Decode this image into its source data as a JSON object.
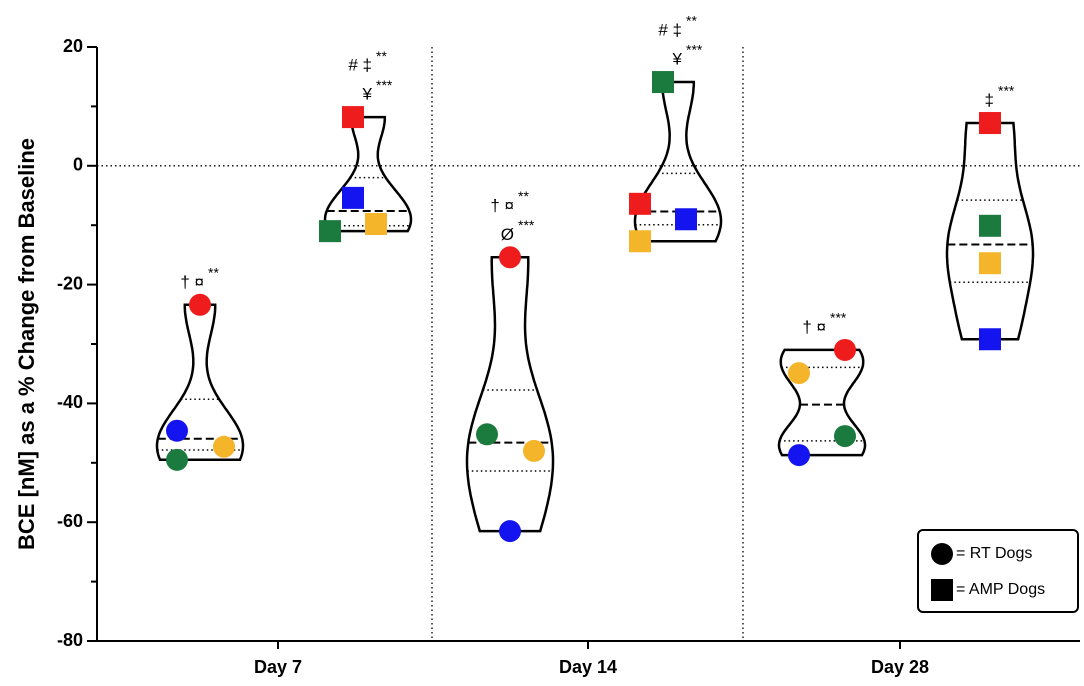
{
  "chart_data": {
    "type": "violin",
    "y_label": "BCE [nM] as a % Change from Baseline",
    "categories": [
      "Day 7",
      "Day 14",
      "Day 28"
    ],
    "ylim": [
      -80,
      20
    ],
    "yticks": [
      -80,
      -60,
      -40,
      -20,
      0,
      20
    ],
    "yticks_minor": [
      -70,
      -50,
      -30,
      -10,
      10
    ],
    "zero_line": true,
    "category_dividers": true,
    "legend_position": "lower right",
    "series": [
      {
        "name": "= RT Dogs",
        "marker": "circle",
        "values": [
          [
            -23.4,
            -44.6,
            -49.5,
            -47.3
          ],
          [
            -15.4,
            -45.2,
            -48.0,
            -61.5
          ],
          [
            -31.0,
            -34.9,
            -45.5,
            -48.7
          ]
        ],
        "colors": [
          [
            "#ee1c1c",
            "#1414f0",
            "#1b7a3e",
            "#f5b52a"
          ],
          [
            "#ee1c1c",
            "#1b7a3e",
            "#f5b52a",
            "#1414f0"
          ],
          [
            "#ee1c1c",
            "#f5b52a",
            "#1b7a3e",
            "#1414f0"
          ]
        ],
        "annotations": [
          [
            {
              "text": "† ¤",
              "stars": "**"
            }
          ],
          [
            {
              "text": "† ¤",
              "stars": "**"
            },
            {
              "text": "Ø",
              "stars": "***"
            }
          ],
          [
            {
              "text": "† ¤",
              "stars": "***"
            }
          ]
        ]
      },
      {
        "name": "= AMP Dogs",
        "marker": "square",
        "values": [
          [
            8.2,
            -5.4,
            -11.0,
            -9.8
          ],
          [
            14.1,
            -6.4,
            -9.0,
            -12.7
          ],
          [
            7.2,
            -10.1,
            -16.4,
            -29.2
          ]
        ],
        "colors": [
          [
            "#ee1c1c",
            "#1414f0",
            "#1b7a3e",
            "#f5b52a"
          ],
          [
            "#1b7a3e",
            "#ee1c1c",
            "#1414f0",
            "#f5b52a"
          ],
          [
            "#ee1c1c",
            "#1b7a3e",
            "#f5b52a",
            "#1414f0"
          ]
        ],
        "annotations": [
          [
            {
              "text": "# ‡",
              "stars": "**"
            },
            {
              "text": "¥",
              "stars": "***"
            }
          ],
          [
            {
              "text": "# ‡",
              "stars": "**"
            },
            {
              "text": "¥",
              "stars": "***"
            }
          ],
          [
            {
              "text": "‡",
              "stars": "***"
            }
          ]
        ]
      }
    ]
  }
}
